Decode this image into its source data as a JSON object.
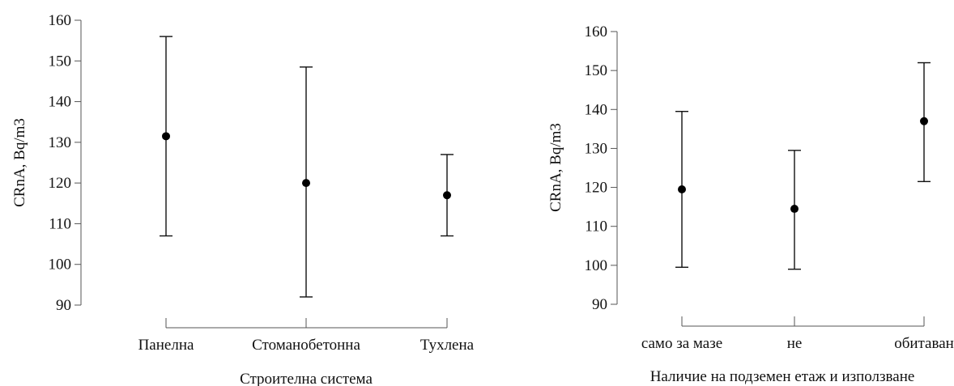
{
  "chart_data": [
    {
      "type": "scatter",
      "subtype": "point-with-error-bars",
      "title": "",
      "xlabel": "Строителна система",
      "ylabel": "CRnA, Bq/m3",
      "ylim": [
        90,
        160
      ],
      "yticks": [
        90,
        100,
        110,
        120,
        130,
        140,
        150,
        160
      ],
      "grid": false,
      "categories": [
        "Панелна",
        "Стоманобетонна",
        "Тухлена"
      ],
      "series": [
        {
          "values": [
            131.5,
            120.0,
            117.0
          ],
          "lower": [
            107.0,
            92.0,
            107.0
          ],
          "upper": [
            156.0,
            148.5,
            127.0
          ]
        }
      ]
    },
    {
      "type": "scatter",
      "subtype": "point-with-error-bars",
      "title": "",
      "xlabel": "Наличие на подземен етаж и използване",
      "ylabel": "CRnA, Bq/m3",
      "ylim": [
        90,
        160
      ],
      "yticks": [
        90,
        100,
        110,
        120,
        130,
        140,
        150,
        160
      ],
      "grid": false,
      "categories": [
        "само за мазе",
        "не",
        "обитаван"
      ],
      "series": [
        {
          "values": [
            119.5,
            114.5,
            137.0
          ],
          "lower": [
            99.5,
            99.0,
            121.5
          ],
          "upper": [
            139.5,
            129.5,
            152.0
          ]
        }
      ]
    }
  ]
}
